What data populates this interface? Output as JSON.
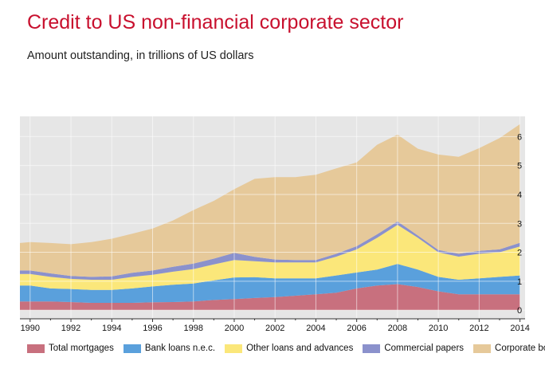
{
  "header": {
    "title": "Credit to US non-financial corporate sector",
    "subtitle": "Amount outstanding, in trillions of US dollars"
  },
  "chart_data": {
    "type": "area",
    "stacked": true,
    "title": "Credit to US non-financial corporate sector",
    "subtitle": "Amount outstanding, in trillions of US dollars",
    "xlabel": "",
    "ylabel": "",
    "x": [
      1989.5,
      1990,
      1991,
      1992,
      1993,
      1994,
      1995,
      1996,
      1997,
      1998,
      1999,
      2000,
      2001,
      2002,
      2003,
      2004,
      2005,
      2006,
      2007,
      2008,
      2009,
      2010,
      2011,
      2012,
      2013,
      2014
    ],
    "xlim": [
      1989.5,
      2014.25
    ],
    "ylim": [
      -0.3,
      6.7
    ],
    "xticks": [
      "1990",
      "1992",
      "1994",
      "1996",
      "1998",
      "2000",
      "2002",
      "2004",
      "2006",
      "2008",
      "2010",
      "2012",
      "2014"
    ],
    "yticks": [
      "0",
      "1",
      "2",
      "3",
      "4",
      "5",
      "6"
    ],
    "grid": true,
    "y_axis_position": "right",
    "legend_position": "bottom",
    "series": [
      {
        "name": "Total mortgages",
        "color": "#c8707e",
        "values": [
          0.3,
          0.3,
          0.3,
          0.28,
          0.25,
          0.25,
          0.25,
          0.27,
          0.28,
          0.3,
          0.35,
          0.38,
          0.42,
          0.45,
          0.5,
          0.55,
          0.6,
          0.75,
          0.85,
          0.9,
          0.8,
          0.65,
          0.55,
          0.55,
          0.55,
          0.55
        ]
      },
      {
        "name": "Bank loans n.e.c.",
        "color": "#5aa0dc",
        "values": [
          0.55,
          0.55,
          0.45,
          0.45,
          0.45,
          0.45,
          0.5,
          0.55,
          0.6,
          0.62,
          0.68,
          0.75,
          0.72,
          0.65,
          0.6,
          0.55,
          0.6,
          0.55,
          0.55,
          0.7,
          0.6,
          0.5,
          0.5,
          0.55,
          0.6,
          0.65
        ]
      },
      {
        "name": "Other loans and advances",
        "color": "#fbe77a",
        "values": [
          0.4,
          0.4,
          0.4,
          0.35,
          0.35,
          0.35,
          0.4,
          0.4,
          0.45,
          0.5,
          0.55,
          0.6,
          0.55,
          0.55,
          0.55,
          0.55,
          0.65,
          0.8,
          1.1,
          1.35,
          1.1,
          0.85,
          0.8,
          0.85,
          0.85,
          1.0
        ]
      },
      {
        "name": "Commercial papers",
        "color": "#8b91cc",
        "values": [
          0.12,
          0.12,
          0.12,
          0.1,
          0.1,
          0.12,
          0.14,
          0.15,
          0.17,
          0.19,
          0.2,
          0.25,
          0.15,
          0.1,
          0.08,
          0.08,
          0.1,
          0.11,
          0.12,
          0.12,
          0.08,
          0.08,
          0.1,
          0.1,
          0.1,
          0.13
        ]
      },
      {
        "name": "Corporate bonds",
        "color": "#e6c99a",
        "values": [
          0.95,
          0.98,
          1.05,
          1.1,
          1.2,
          1.3,
          1.35,
          1.45,
          1.6,
          1.85,
          2.0,
          2.2,
          2.7,
          2.85,
          2.87,
          2.95,
          2.95,
          2.9,
          3.1,
          3.0,
          3.0,
          3.3,
          3.35,
          3.55,
          3.85,
          4.1
        ]
      }
    ]
  }
}
